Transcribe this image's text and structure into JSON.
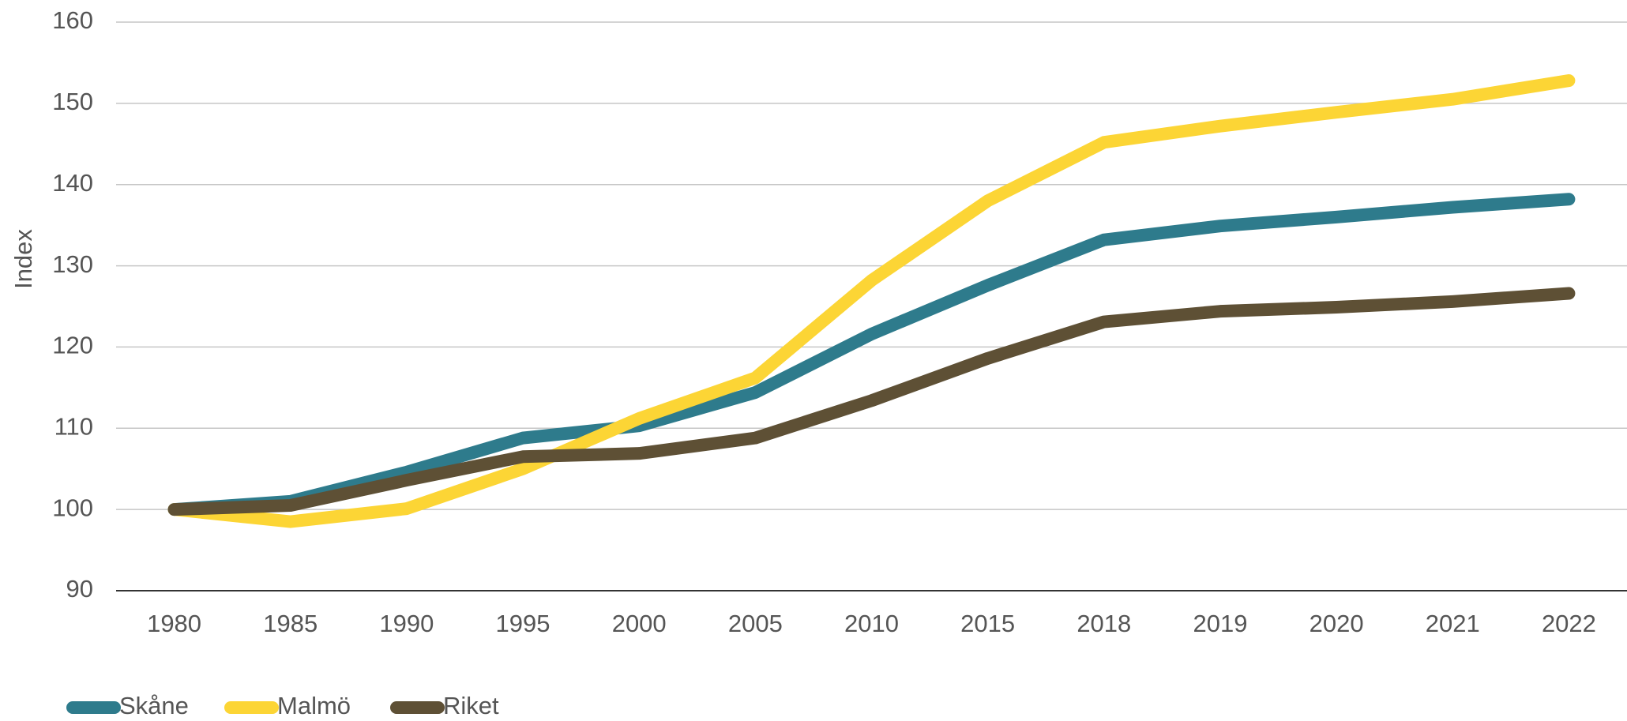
{
  "chart_data": {
    "type": "line",
    "y_label": "Index",
    "categories": [
      "1980",
      "1985",
      "1990",
      "1995",
      "2000",
      "2005",
      "2010",
      "2015",
      "2018",
      "2019",
      "2020",
      "2021",
      "2022"
    ],
    "series": [
      {
        "name": "Skåne",
        "color": "#2e7b8c",
        "values": [
          100,
          101,
          104.6,
          108.8,
          110.3,
          114.4,
          121.6,
          127.6,
          133.2,
          134.9,
          136,
          137.2,
          138.2
        ]
      },
      {
        "name": "Malmö",
        "color": "#fcd535",
        "values": [
          100,
          98.5,
          100.1,
          105,
          111.2,
          116.2,
          128.2,
          138,
          145.2,
          147.2,
          148.9,
          150.5,
          152.8
        ]
      },
      {
        "name": "Riket",
        "color": "#5e5035",
        "values": [
          100,
          100.5,
          103.6,
          106.5,
          106.9,
          108.8,
          113.4,
          118.6,
          123.1,
          124.4,
          124.9,
          125.6,
          126.6
        ]
      }
    ],
    "ylim": [
      90,
      160
    ],
    "yticks": [
      90,
      100,
      110,
      120,
      130,
      140,
      150,
      160
    ],
    "grid": true,
    "legend": "bottom-left"
  }
}
